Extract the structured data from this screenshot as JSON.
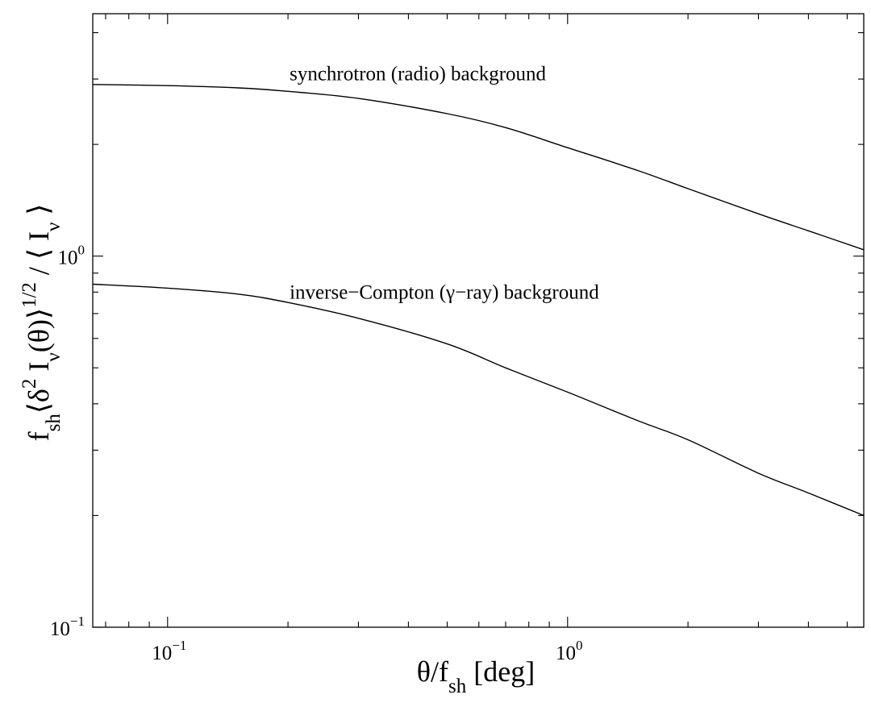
{
  "chart_data": {
    "type": "line",
    "xscale": "log",
    "yscale": "log",
    "xlim": [
      0.065,
      5.5
    ],
    "ylim": [
      0.1,
      4.5
    ],
    "grid": false,
    "legend": "none",
    "xlabel": {
      "main": "θ/f",
      "sub": "sh",
      "after": " [deg]"
    },
    "ylabel": {
      "parts": [
        {
          "t": "f"
        },
        {
          "t": "sh",
          "s": "sub"
        },
        {
          "t": "⟨δ"
        },
        {
          "t": "2",
          "s": "sup"
        },
        {
          "t": " I"
        },
        {
          "t": "ν",
          "s": "sub"
        },
        {
          "t": "(θ)⟩"
        },
        {
          "t": "1/2",
          "s": "sup"
        },
        {
          "t": " / ⟨ I"
        },
        {
          "t": "ν",
          "s": "sub"
        },
        {
          "t": " ⟩"
        }
      ]
    },
    "xticks": [
      {
        "value": 0.1,
        "base": "10",
        "exp": "−1"
      },
      {
        "value": 1,
        "base": "10",
        "exp": "0"
      }
    ],
    "yticks": [
      {
        "value": 0.1,
        "base": "10",
        "exp": "−1"
      },
      {
        "value": 1,
        "base": "10",
        "exp": "0"
      }
    ],
    "series": [
      {
        "name": "synchrotron (radio) background",
        "x": [
          0.065,
          0.1,
          0.15,
          0.2,
          0.3,
          0.5,
          0.7,
          1.0,
          1.5,
          2.0,
          3.0,
          4.0,
          5.5
        ],
        "y": [
          2.9,
          2.88,
          2.84,
          2.78,
          2.66,
          2.42,
          2.22,
          1.96,
          1.7,
          1.52,
          1.3,
          1.17,
          1.04
        ]
      },
      {
        "name": "inverse−Compton (γ−ray) background",
        "x": [
          0.065,
          0.1,
          0.15,
          0.2,
          0.3,
          0.5,
          0.7,
          1.0,
          1.5,
          2.0,
          3.0,
          4.0,
          5.5
        ],
        "y": [
          0.84,
          0.82,
          0.79,
          0.75,
          0.68,
          0.58,
          0.5,
          0.43,
          0.36,
          0.32,
          0.26,
          0.23,
          0.2
        ]
      }
    ],
    "annotations": [
      {
        "text": "synchrotron (radio) background",
        "x": 0.2,
        "y": 3.1
      },
      {
        "text": "inverse−Compton (γ−ray) background",
        "x": 0.2,
        "y": 0.8
      }
    ]
  }
}
